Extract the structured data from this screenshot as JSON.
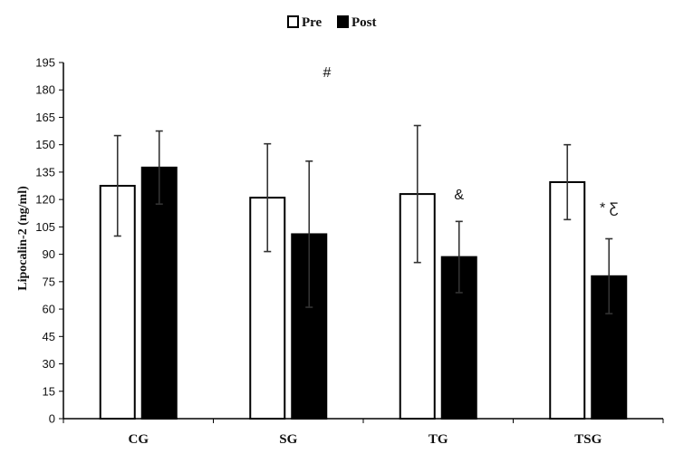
{
  "chart_data": {
    "type": "bar",
    "title": "",
    "xlabel": "",
    "ylabel": "Lipocalin-2  (ng/ml)",
    "ylim": [
      0,
      195
    ],
    "yticks": [
      0,
      15,
      30,
      45,
      60,
      75,
      90,
      105,
      120,
      135,
      150,
      165,
      180,
      195
    ],
    "categories": [
      "CG",
      "SG",
      "TG",
      "TSG"
    ],
    "legend_position": "top-center",
    "grid": false,
    "series": [
      {
        "name": "Pre",
        "fill": "#ffffff",
        "stroke": "#000000",
        "values": [
          127.5,
          121.0,
          123.0,
          129.5
        ],
        "error": [
          27.5,
          29.5,
          37.5,
          20.5
        ]
      },
      {
        "name": "Post",
        "fill": "#000000",
        "stroke": "#000000",
        "values": [
          137.5,
          101.0,
          88.5,
          78.0
        ],
        "error": [
          20.0,
          40.0,
          19.5,
          20.5
        ]
      }
    ],
    "annotations": [
      {
        "text": "#",
        "category": "CG-SG gap",
        "y": 187
      },
      {
        "text": "&",
        "category": "TG",
        "series": "Post",
        "y": 120
      },
      {
        "text": "* Ƹ",
        "category": "TSG",
        "series": "Post",
        "y": 113
      }
    ]
  }
}
